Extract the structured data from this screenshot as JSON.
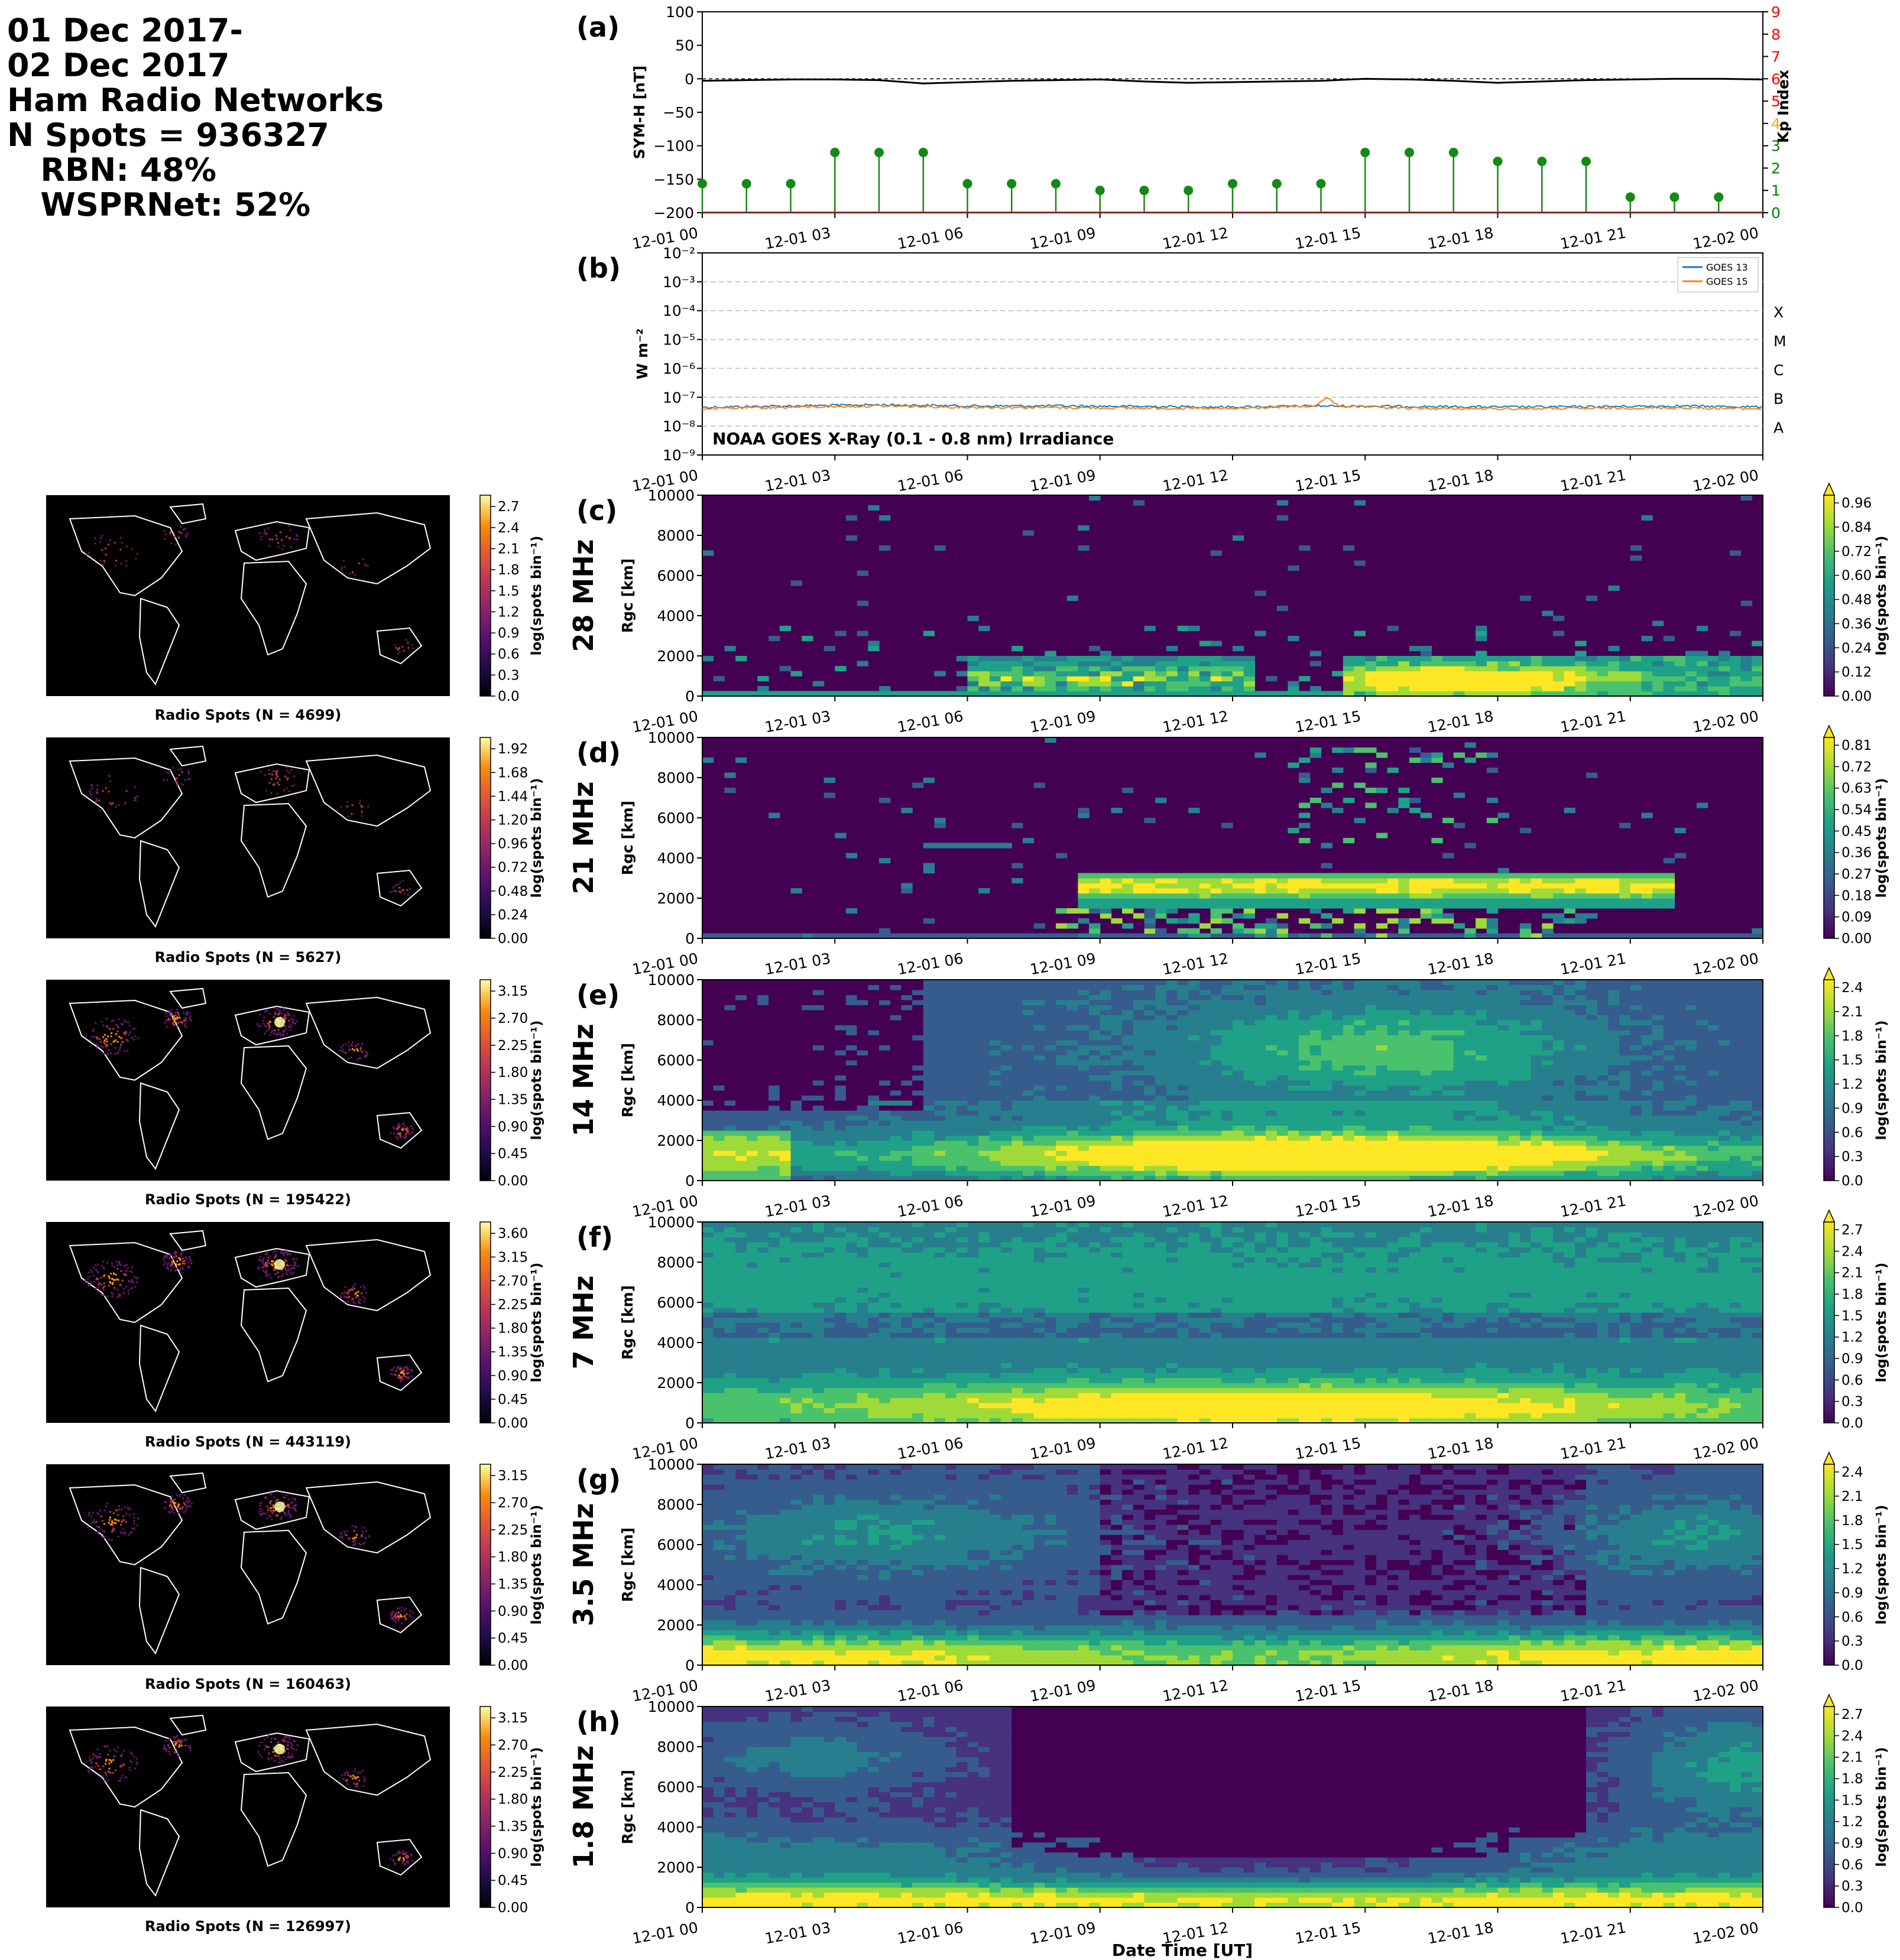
{
  "header": {
    "lines": [
      "01 Dec 2017-",
      "02 Dec 2017",
      "Ham Radio Networks",
      "N Spots = 936327",
      "   RBN: 48%",
      "   WSPRNet: 52%"
    ]
  },
  "chart_data": [
    {
      "panel": "(a)",
      "type": "line",
      "ylabel": "SYM-H [nT]",
      "y2label": "Kp Index",
      "ylim": [
        -200,
        100
      ],
      "yticks": [
        100,
        50,
        0,
        -50,
        -100,
        -150,
        -200
      ],
      "y2lim": [
        0,
        9
      ],
      "y2ticks": [
        0,
        1,
        2,
        3,
        4,
        5,
        6,
        7,
        8,
        9
      ],
      "y2tick_colors": [
        "green",
        "green",
        "green",
        "green",
        "orange",
        "red",
        "red",
        "red",
        "red",
        "red"
      ],
      "xticks": [
        "12-01 00",
        "12-01 03",
        "12-01 06",
        "12-01 09",
        "12-01 12",
        "12-01 15",
        "12-01 18",
        "12-01 21",
        "12-02 00"
      ],
      "symh": {
        "x_hours": [
          0,
          1,
          2,
          3,
          4,
          5,
          6,
          7,
          8,
          9,
          10,
          11,
          12,
          13,
          14,
          15,
          16,
          17,
          18,
          19,
          20,
          21,
          22,
          23,
          24
        ],
        "values": [
          -3,
          -2,
          -1,
          -1,
          -2,
          -7,
          -5,
          -3,
          -2,
          -1,
          -4,
          -6,
          -5,
          -4,
          -3,
          0,
          -1,
          -3,
          -6,
          -4,
          -2,
          -1,
          0,
          0,
          -1
        ]
      },
      "kp": {
        "x_hours": [
          0,
          1,
          2,
          3,
          4,
          5,
          6,
          7,
          8,
          9,
          10,
          11,
          12,
          13,
          14,
          15,
          16,
          17,
          18,
          19,
          20,
          21,
          22,
          23
        ],
        "values": [
          1.3,
          1.3,
          1.3,
          2.7,
          2.7,
          2.7,
          1.3,
          1.3,
          1.3,
          1.0,
          1.0,
          1.0,
          1.3,
          1.3,
          1.3,
          2.7,
          2.7,
          2.7,
          2.3,
          2.3,
          2.3,
          0.7,
          0.7,
          0.7
        ]
      }
    },
    {
      "panel": "(b)",
      "type": "line",
      "log_scale": true,
      "ylabel": "W m⁻²",
      "yticks": [
        "10⁻²",
        "10⁻³",
        "10⁻⁴",
        "10⁻⁵",
        "10⁻⁶",
        "10⁻⁷",
        "10⁻⁸",
        "10⁻⁹"
      ],
      "flare_classes": [
        "X",
        "M",
        "C",
        "B",
        "A"
      ],
      "annotation": "NOAA GOES X-Ray (0.1 - 0.8 nm) Irradiance",
      "xticks": [
        "12-01 00",
        "12-01 03",
        "12-01 06",
        "12-01 09",
        "12-01 12",
        "12-01 15",
        "12-01 18",
        "12-01 21",
        "12-02 00"
      ],
      "series": [
        {
          "name": "GOES 13",
          "color": "#1f77b4",
          "x_hours": [
            0,
            2,
            4,
            6,
            8,
            10,
            12,
            14,
            16,
            18,
            20,
            22,
            24
          ],
          "values": [
            4.5e-08,
            5e-08,
            5.5e-08,
            5e-08,
            5e-08,
            4.8e-08,
            4.6e-08,
            5e-08,
            4.8e-08,
            4.6e-08,
            4.7e-08,
            5e-08,
            4.6e-08
          ]
        },
        {
          "name": "GOES 15",
          "color": "#ff7f0e",
          "x_hours": [
            0,
            2,
            4,
            6,
            8,
            10,
            12,
            13.9,
            14.1,
            14.4,
            16,
            18,
            20,
            22,
            24
          ],
          "values": [
            4e-08,
            4.5e-08,
            5e-08,
            4.5e-08,
            4.4e-08,
            4.2e-08,
            4e-08,
            5e-08,
            9.5e-08,
            5e-08,
            4.1e-08,
            4e-08,
            4.1e-08,
            4.3e-08,
            4e-08
          ]
        }
      ]
    },
    {
      "panel": "(c)",
      "type": "heatmap",
      "band": "28 MHz",
      "ylabel": "Rgc [km]",
      "map_caption": "Radio Spots (N = 4699)",
      "map_cbar_ticks": [
        "0.0",
        "0.3",
        "0.6",
        "0.9",
        "1.2",
        "1.5",
        "1.8",
        "2.1",
        "2.4",
        "2.7"
      ],
      "cbar_label": "log(spots bin⁻¹)",
      "cbar_ticks": [
        "0.00",
        "0.12",
        "0.24",
        "0.36",
        "0.48",
        "0.60",
        "0.72",
        "0.84",
        "0.96"
      ],
      "pattern": "sparse28"
    },
    {
      "panel": "(d)",
      "type": "heatmap",
      "band": "21 MHz",
      "ylabel": "Rgc [km]",
      "map_caption": "Radio Spots (N = 5627)",
      "map_cbar_ticks": [
        "0.00",
        "0.24",
        "0.48",
        "0.72",
        "0.96",
        "1.20",
        "1.44",
        "1.68",
        "1.92"
      ],
      "cbar_label": "log(spots bin⁻¹)",
      "cbar_ticks": [
        "0.00",
        "0.09",
        "0.18",
        "0.27",
        "0.36",
        "0.45",
        "0.54",
        "0.63",
        "0.72",
        "0.81"
      ],
      "pattern": "sparse21"
    },
    {
      "panel": "(e)",
      "type": "heatmap",
      "band": "14 MHz",
      "ylabel": "Rgc [km]",
      "map_caption": "Radio Spots (N = 195422)",
      "map_cbar_ticks": [
        "0.00",
        "0.45",
        "0.90",
        "1.35",
        "1.80",
        "2.25",
        "2.70",
        "3.15"
      ],
      "cbar_label": "log(spots bin⁻¹)",
      "cbar_ticks": [
        "0.0",
        "0.3",
        "0.6",
        "0.9",
        "1.2",
        "1.5",
        "1.8",
        "2.1",
        "2.4"
      ],
      "pattern": "mid14"
    },
    {
      "panel": "(f)",
      "type": "heatmap",
      "band": "7 MHz",
      "ylabel": "Rgc [km]",
      "map_caption": "Radio Spots (N = 443119)",
      "map_cbar_ticks": [
        "0.00",
        "0.45",
        "0.90",
        "1.35",
        "1.80",
        "2.25",
        "2.70",
        "3.15",
        "3.60"
      ],
      "cbar_label": "log(spots bin⁻¹)",
      "cbar_ticks": [
        "0.0",
        "0.3",
        "0.6",
        "0.9",
        "1.2",
        "1.5",
        "1.8",
        "2.1",
        "2.4",
        "2.7"
      ],
      "pattern": "dense7"
    },
    {
      "panel": "(g)",
      "type": "heatmap",
      "band": "3.5 MHz",
      "ylabel": "Rgc [km]",
      "map_caption": "Radio Spots (N = 160463)",
      "map_cbar_ticks": [
        "0.00",
        "0.45",
        "0.90",
        "1.35",
        "1.80",
        "2.25",
        "2.70",
        "3.15"
      ],
      "cbar_label": "log(spots bin⁻¹)",
      "cbar_ticks": [
        "0.0",
        "0.3",
        "0.6",
        "0.9",
        "1.2",
        "1.5",
        "1.8",
        "2.1",
        "2.4"
      ],
      "pattern": "low35"
    },
    {
      "panel": "(h)",
      "type": "heatmap",
      "band": "1.8 MHz",
      "ylabel": "Rgc [km]",
      "map_caption": "Radio Spots (N = 126997)",
      "map_cbar_ticks": [
        "0.00",
        "0.45",
        "0.90",
        "1.35",
        "1.80",
        "2.25",
        "2.70",
        "3.15"
      ],
      "cbar_label": "log(spots bin⁻¹)",
      "cbar_ticks": [
        "0.0",
        "0.3",
        "0.6",
        "0.9",
        "1.2",
        "1.5",
        "1.8",
        "2.1",
        "2.4",
        "2.7"
      ],
      "pattern": "low18"
    }
  ],
  "heatmap_axes": {
    "yticks": [
      "0",
      "2000",
      "4000",
      "6000",
      "8000",
      "10000"
    ],
    "xticks": [
      "12-01 00",
      "12-01 03",
      "12-01 06",
      "12-01 09",
      "12-01 12",
      "12-01 15",
      "12-01 18",
      "12-01 21",
      "12-02 00"
    ]
  },
  "xlabel": "Date Time [UT]"
}
